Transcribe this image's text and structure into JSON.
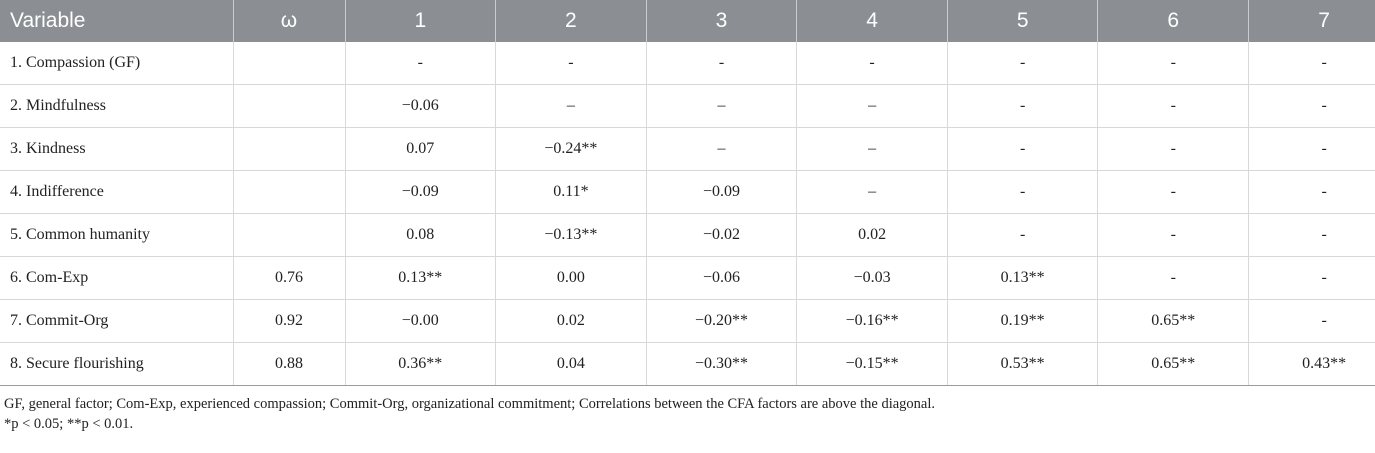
{
  "table": {
    "headers": [
      "Variable",
      "ω",
      "1",
      "2",
      "3",
      "4",
      "5",
      "6",
      "7"
    ],
    "rows": [
      [
        "1. Compassion (GF)",
        "",
        "-",
        "-",
        "-",
        "-",
        "-",
        "-",
        "-"
      ],
      [
        "2. Mindfulness",
        "",
        "−0.06",
        "–",
        "–",
        "–",
        "-",
        "-",
        "-"
      ],
      [
        "3. Kindness",
        "",
        "0.07",
        "−0.24**",
        "–",
        "–",
        "-",
        "-",
        "-"
      ],
      [
        "4. Indifference",
        "",
        "−0.09",
        "0.11*",
        "−0.09",
        "–",
        "-",
        "-",
        "-"
      ],
      [
        "5. Common humanity",
        "",
        "0.08",
        "−0.13**",
        "−0.02",
        "0.02",
        "-",
        "-",
        "-"
      ],
      [
        "6. Com-Exp",
        "0.76",
        "0.13**",
        "0.00",
        "−0.06",
        "−0.03",
        "0.13**",
        "-",
        "-"
      ],
      [
        "7. Commit-Org",
        "0.92",
        "−0.00",
        "0.02",
        "−0.20**",
        "−0.16**",
        "0.19**",
        "0.65**",
        "-"
      ],
      [
        "8. Secure flourishing",
        "0.88",
        "0.36**",
        "0.04",
        "−0.30**",
        "−0.15**",
        "0.53**",
        "0.65**",
        "0.43**"
      ]
    ]
  },
  "notes": {
    "line1": "GF, general factor; Com-Exp, experienced compassion; Commit-Org, organizational commitment; Correlations between the CFA factors are above the diagonal.",
    "line2": "*p < 0.05; **p < 0.01."
  }
}
